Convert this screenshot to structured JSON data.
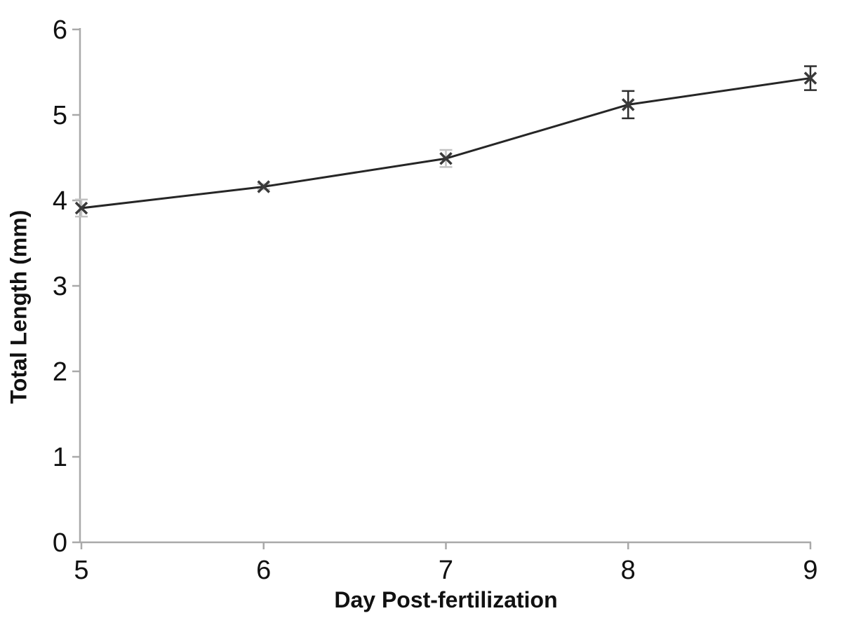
{
  "figure": {
    "background": "#ffffff"
  },
  "chart_data": {
    "type": "line",
    "title": "",
    "xlabel": "Day Post-fertilization",
    "ylabel": "Total Length (mm)",
    "x": [
      5,
      6,
      7,
      8,
      9
    ],
    "series": [
      {
        "name": "total-length-mm",
        "values": [
          3.91,
          4.16,
          4.49,
          5.12,
          5.43
        ],
        "errors": [
          0.1,
          0.03,
          0.1,
          0.16,
          0.14
        ],
        "error_bar_colors": [
          "#c2c2c2",
          "#c2c2c2",
          "#c2c2c2",
          "#2e2e2e",
          "#2e2e2e"
        ]
      }
    ],
    "xticks": [
      5,
      6,
      7,
      8,
      9
    ],
    "yticks": [
      0,
      1,
      2,
      3,
      4,
      5,
      6
    ],
    "xlim": [
      5,
      9
    ],
    "ylim": [
      0,
      6
    ],
    "grid": false,
    "legend_position": "none",
    "marker": "x",
    "colors": {
      "line": "#262626",
      "marker": "#3a3a3a",
      "axis": "#a9a9a9",
      "tick_label": "#111111",
      "axis_title": "#111111"
    }
  }
}
